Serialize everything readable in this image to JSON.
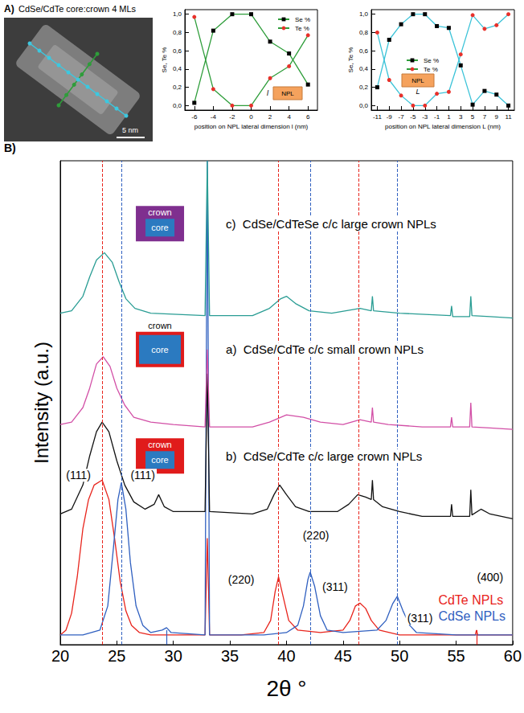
{
  "image": {
    "panel": "A)",
    "title": "CdSe/CdTe core:crown 4 MLs",
    "scale_bar": "5 nm"
  },
  "chart_data": [
    {
      "type": "line",
      "x_label": "position on NPL lateral dimension l (nm)",
      "y_label": "Se, Te %",
      "color": "#2e9d3a",
      "x": [
        -6,
        -4,
        -2,
        0,
        2,
        4,
        6
      ],
      "series": [
        {
          "name": "Se %",
          "color": "#000000",
          "marker": "square",
          "values": [
            0.03,
            0.82,
            1.0,
            1.0,
            0.7,
            0.57,
            0.23
          ]
        },
        {
          "name": "Te %",
          "color": "#e8302a",
          "marker": "circle",
          "values": [
            0.97,
            0.18,
            0.0,
            0.0,
            0.3,
            0.43,
            0.77
          ]
        }
      ],
      "xlim": [
        -7,
        7
      ],
      "xticks": [
        -6,
        -4,
        -2,
        0,
        2,
        4,
        6
      ],
      "ylim": [
        -0.05,
        1.05
      ],
      "yticks": [
        {
          "value": 0,
          "label": "0,0"
        },
        {
          "value": 0.2,
          "label": "0,2"
        },
        {
          "value": 0.4,
          "label": "0,4"
        },
        {
          "value": 0.6,
          "label": "0,6"
        },
        {
          "value": 0.8,
          "label": "0,8"
        },
        {
          "value": 1,
          "label": "1,0"
        }
      ],
      "grid": false,
      "legend": "upper right",
      "inset": {
        "text": "NPL",
        "dimension": "l"
      }
    },
    {
      "type": "line",
      "x_label": "position on NPL lateral dimension L (nm)",
      "y_label": "Se, Te %",
      "color": "#3cc3d8",
      "x": [
        -11,
        -9,
        -7,
        -5,
        -3,
        -1,
        1,
        3,
        5,
        7,
        9,
        11
      ],
      "series": [
        {
          "name": "Se %",
          "color": "#000000",
          "marker": "square",
          "values": [
            0.2,
            0.72,
            0.89,
            1.0,
            1.0,
            0.87,
            0.85,
            0.44,
            0.01,
            0.16,
            0.12,
            0.0
          ]
        },
        {
          "name": "Te %",
          "color": "#e8302a",
          "marker": "circle",
          "values": [
            0.8,
            0.28,
            0.11,
            0.0,
            0.0,
            0.13,
            0.15,
            0.56,
            0.99,
            0.84,
            0.88,
            1.0
          ]
        }
      ],
      "xlim": [
        -12,
        12
      ],
      "xticks": [
        -11,
        -9,
        -7,
        -5,
        -3,
        -1,
        1,
        3,
        5,
        7,
        9,
        11
      ],
      "ylim": [
        -0.05,
        1.05
      ],
      "yticks": [
        {
          "value": 0,
          "label": "0,0"
        },
        {
          "value": 0.2,
          "label": "0,2"
        },
        {
          "value": 0.4,
          "label": "0,4"
        },
        {
          "value": 0.6,
          "label": "0,6"
        },
        {
          "value": 0.8,
          "label": "0,8"
        },
        {
          "value": 1,
          "label": "1,0"
        }
      ],
      "grid": false,
      "legend": "center left",
      "inset": {
        "text": "NPL",
        "dimension": "L"
      }
    },
    {
      "type": "line",
      "panel": "B)",
      "x_label": "2θ °",
      "y_label": "Intensity (a.u.)",
      "xlim": [
        20,
        60
      ],
      "xticks": [
        20,
        25,
        30,
        35,
        40,
        45,
        50,
        55,
        60
      ],
      "ylim": [
        0,
        100
      ],
      "yticks": [],
      "tick_labels": "x",
      "grid": false,
      "legend": "lower right",
      "series": [
        {
          "name": "CdTe NPLs",
          "color": "#e8241c",
          "x": [
            20,
            20.5,
            21,
            21.5,
            22,
            22.5,
            23,
            23.7,
            24.3,
            24.8,
            25.3,
            25.8,
            26.3,
            27,
            28,
            30,
            32.8,
            33,
            33.2,
            36,
            38,
            38.6,
            39,
            39.3,
            39.7,
            40.2,
            41,
            43,
            45,
            45.6,
            46.1,
            46.5,
            47,
            47.5,
            48.2,
            50,
            56.7,
            56.8,
            56.9,
            60
          ],
          "values": [
            2,
            3,
            6.5,
            14,
            24,
            30,
            33,
            34,
            30,
            22,
            13,
            7,
            4,
            2.5,
            2,
            2,
            2,
            22,
            2,
            2,
            2.5,
            5,
            11,
            14,
            10,
            5,
            3,
            2.5,
            3,
            5,
            8,
            8.6,
            7.5,
            5,
            3,
            2,
            2,
            3,
            2,
            2
          ],
          "reference_lines": [
            23.7,
            39.3,
            46.4
          ],
          "short_reference_lines": [
            56.8
          ]
        },
        {
          "name": "CdSe NPLs",
          "color": "#3060c0",
          "x": [
            20,
            22,
            23.5,
            24.2,
            24.7,
            25.1,
            25.4,
            25.8,
            26.2,
            26.7,
            27.3,
            28,
            29,
            29.4,
            29.8,
            32.8,
            33,
            33.2,
            38,
            40,
            41,
            41.5,
            41.9,
            42.1,
            42.5,
            43,
            43.6,
            45,
            48,
            48.8,
            49.4,
            49.8,
            50.3,
            50.9,
            51.5,
            55,
            60
          ],
          "values": [
            2,
            2,
            3,
            8,
            20,
            30,
            33.5,
            28,
            17,
            8,
            4,
            2.5,
            3,
            3.5,
            2.5,
            2,
            100,
            2,
            2,
            2.5,
            4,
            8,
            13.5,
            15,
            12,
            6,
            3,
            2.5,
            3,
            5,
            8.5,
            10,
            7,
            4,
            2.5,
            2,
            2
          ],
          "reference_lines": [
            25.4,
            42.1,
            49.8
          ],
          "short_reference_lines": [
            29.4
          ]
        },
        {
          "name": "b)  CdSe/CdTe c/c large crown NPLs",
          "color": "#111111",
          "label_position": [
            34.5,
            39
          ],
          "icon": {
            "outer": "crown",
            "inner": "core",
            "outer_color": "#e01b1b",
            "inner_color": "#2b7ac0",
            "crown_size": "large"
          },
          "x": [
            20,
            21,
            22,
            22.6,
            23.2,
            23.7,
            24.3,
            25,
            25.7,
            26.5,
            27.5,
            28.3,
            28.7,
            29.2,
            30,
            32.8,
            33,
            33.2,
            37,
            38.3,
            38.9,
            39.4,
            40,
            40.8,
            42,
            44.5,
            45.5,
            46.3,
            47,
            47.5,
            47.6,
            47.7,
            48.5,
            50,
            52,
            54.5,
            54.6,
            54.7,
            56.2,
            56.3,
            56.4,
            57.2,
            58,
            60
          ],
          "values": [
            27,
            28,
            33,
            39,
            44,
            46,
            44,
            38,
            33,
            29.5,
            28,
            29,
            31,
            28.5,
            27.5,
            27.5,
            56,
            27.5,
            27,
            28,
            31,
            33,
            31,
            28.5,
            27.5,
            27.5,
            29,
            31,
            30.5,
            30,
            34,
            30,
            28.5,
            27.5,
            26.5,
            26.5,
            29,
            26.5,
            26.5,
            32,
            26.8,
            28,
            27,
            26
          ]
        },
        {
          "name": "a)  CdSe/CdTe c/c small crown NPLs",
          "color": "#d24fa6",
          "label_position": [
            34.5,
            61
          ],
          "icon": {
            "outer": "crown",
            "inner": "core",
            "outer_color": "#e01b1b",
            "inner_color": "#2b7ac0",
            "crown_size": "small"
          },
          "x": [
            20,
            21,
            22,
            22.6,
            23.2,
            23.8,
            24.4,
            25,
            25.7,
            26.5,
            28,
            30,
            32.8,
            33,
            33.2,
            37,
            38.5,
            40,
            41.5,
            43,
            45,
            46.5,
            47.5,
            47.6,
            47.7,
            49,
            52,
            54.5,
            54.6,
            54.7,
            56.2,
            56.3,
            56.4,
            58,
            60
          ],
          "values": [
            45.5,
            46,
            49,
            53,
            58,
            59.5,
            57.5,
            53,
            49.5,
            47,
            46,
            45.5,
            45,
            61,
            45,
            45,
            46,
            47.5,
            47,
            46,
            45.5,
            46.5,
            46,
            49,
            46,
            45.5,
            45,
            45,
            47,
            45,
            45,
            50,
            45,
            44.8,
            44.5
          ]
        },
        {
          "name": "c)  CdSe/CdTeSe c/c large crown NPLs",
          "color": "#2a9d94",
          "label_position": [
            34.5,
            87
          ],
          "icon": {
            "outer": "crown",
            "inner": "core",
            "outer_color": "#7f2f8f",
            "inner_color": "#2b7ac0",
            "crown_size": "large"
          },
          "x": [
            20,
            21,
            22,
            22.6,
            23.2,
            23.9,
            24.6,
            25.2,
            25.8,
            26.6,
            28,
            32.8,
            33,
            33.2,
            37,
            38.5,
            39.5,
            40,
            40.8,
            42,
            44,
            46.5,
            47.5,
            47.6,
            47.7,
            50,
            54.5,
            54.6,
            54.7,
            56.2,
            56.3,
            56.4,
            58,
            60
          ],
          "values": [
            68.5,
            69,
            72,
            76,
            79.5,
            81,
            79,
            75,
            71.5,
            69.5,
            68.5,
            68,
            100,
            68,
            68,
            69.5,
            71.5,
            72,
            70.5,
            69,
            68.5,
            69.5,
            69,
            72,
            69,
            68.5,
            68,
            70,
            67.8,
            67.8,
            72,
            68,
            67.8,
            67.5
          ]
        }
      ],
      "annotations": [
        {
          "text": "(111)",
          "x": 21.6,
          "y": 35
        },
        {
          "text": "(111)",
          "x": 27.3,
          "y": 35
        },
        {
          "text": "(220)",
          "x": 36,
          "y": 13.5
        },
        {
          "text": "(220)",
          "x": 42.6,
          "y": 22.6
        },
        {
          "text": "(311)",
          "x": 44.3,
          "y": 12
        },
        {
          "text": "(311)",
          "x": 51.8,
          "y": 5.5
        },
        {
          "text": "(400)",
          "x": 58.0,
          "y": 14
        }
      ]
    }
  ]
}
